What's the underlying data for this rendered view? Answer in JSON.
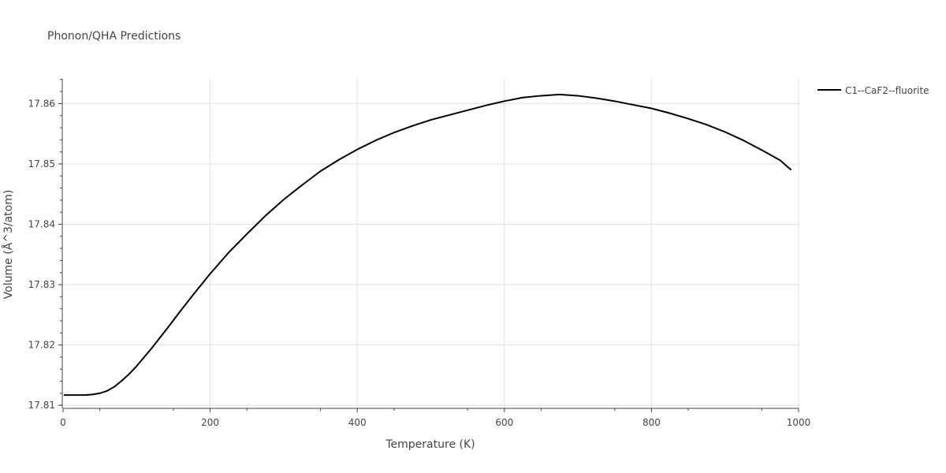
{
  "chart_data": {
    "type": "line",
    "title": "Phonon/QHA Predictions",
    "xlabel": "Temperature (K)",
    "ylabel": "Volume (Å^3/atom)",
    "xlim": [
      0,
      1000
    ],
    "ylim": [
      17.8095,
      17.8641
    ],
    "x_ticks": [
      0,
      200,
      400,
      600,
      800,
      1000
    ],
    "x_tick_labels": [
      "0",
      "200",
      "400",
      "600",
      "800",
      "1000"
    ],
    "y_ticks": [
      17.81,
      17.82,
      17.83,
      17.84,
      17.85,
      17.86
    ],
    "y_tick_labels": [
      "17.81",
      "17.82",
      "17.83",
      "17.84",
      "17.85",
      "17.86"
    ],
    "grid": true,
    "legend_position": "top-right",
    "series": [
      {
        "name": "C1--CaF2--fluorite",
        "color": "#000000",
        "x": [
          1,
          10,
          20,
          30,
          40,
          50,
          60,
          70,
          80,
          90,
          100,
          120,
          140,
          160,
          180,
          200,
          225,
          250,
          275,
          300,
          325,
          350,
          375,
          400,
          425,
          450,
          475,
          500,
          525,
          550,
          575,
          600,
          625,
          650,
          675,
          700,
          725,
          750,
          775,
          800,
          825,
          850,
          875,
          900,
          925,
          950,
          975,
          990
        ],
        "y": [
          17.8117,
          17.8117,
          17.8117,
          17.8117,
          17.8118,
          17.812,
          17.8124,
          17.8131,
          17.8141,
          17.8152,
          17.8165,
          17.8194,
          17.8225,
          17.8257,
          17.8288,
          17.8318,
          17.8353,
          17.8384,
          17.8414,
          17.8441,
          17.8465,
          17.8488,
          17.8507,
          17.8524,
          17.8539,
          17.8552,
          17.8563,
          17.8573,
          17.8581,
          17.8589,
          17.8597,
          17.8604,
          17.861,
          17.8613,
          17.8615,
          17.8613,
          17.8609,
          17.8604,
          17.8598,
          17.8592,
          17.8584,
          17.8575,
          17.8565,
          17.8553,
          17.8539,
          17.8523,
          17.8506,
          17.849
        ]
      }
    ]
  }
}
